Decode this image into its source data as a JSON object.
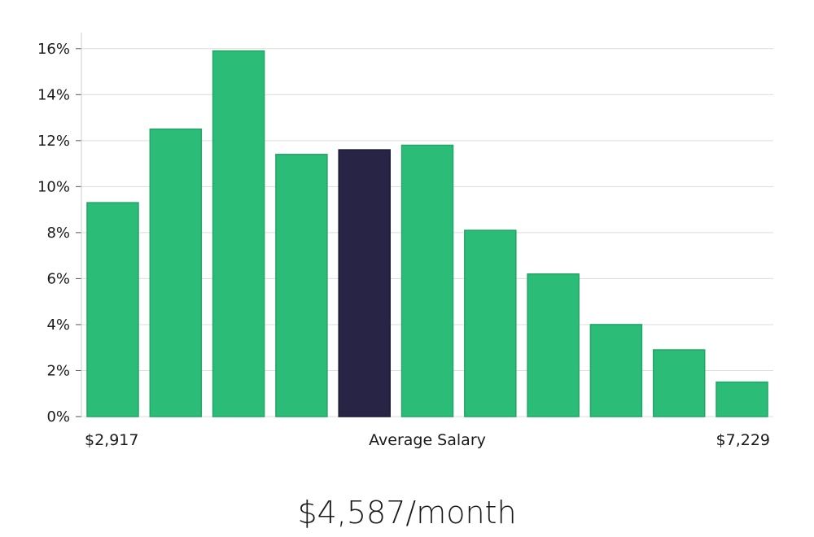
{
  "chart_data": {
    "type": "bar",
    "values": [
      9.3,
      12.5,
      15.9,
      11.4,
      11.6,
      11.8,
      8.1,
      6.2,
      4.0,
      2.9,
      1.5
    ],
    "highlight_index": 4,
    "ylim": [
      0,
      16.7
    ],
    "yticks": [
      0,
      2,
      4,
      6,
      8,
      10,
      12,
      14,
      16
    ],
    "ytick_format": "%",
    "x_labels": {
      "min": "$2,917",
      "center": "Average Salary",
      "max": "$7,229"
    },
    "grid": true,
    "colors": {
      "bar": "#2bbd78",
      "bar_edge": "#22a566",
      "highlight": "#282445",
      "grid": "#dcdcdc",
      "axis": "#cccccc"
    }
  },
  "summary": {
    "average_text": "$4,587/month"
  }
}
